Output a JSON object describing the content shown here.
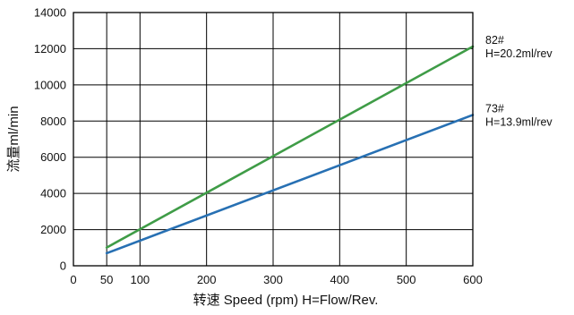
{
  "chart_data": {
    "type": "line",
    "title": "",
    "xlabel": "转速 Speed (rpm)  H=Flow/Rev.",
    "ylabel": "流量ml/min",
    "xlim": [
      0,
      600
    ],
    "ylim": [
      0,
      14000
    ],
    "x_ticks": [
      0,
      50,
      100,
      200,
      300,
      400,
      500,
      600
    ],
    "y_ticks": [
      0,
      2000,
      4000,
      6000,
      8000,
      10000,
      12000,
      14000
    ],
    "grid": true,
    "series": [
      {
        "label_lines": [
          "82#",
          "H=20.2ml/rev"
        ],
        "color": "#3f9c47",
        "x": [
          50,
          600
        ],
        "y": [
          1010,
          12120
        ]
      },
      {
        "label_lines": [
          "73#",
          "H=13.9ml/rev"
        ],
        "color": "#2770b3",
        "x": [
          50,
          600
        ],
        "y": [
          695,
          8340
        ]
      }
    ]
  }
}
